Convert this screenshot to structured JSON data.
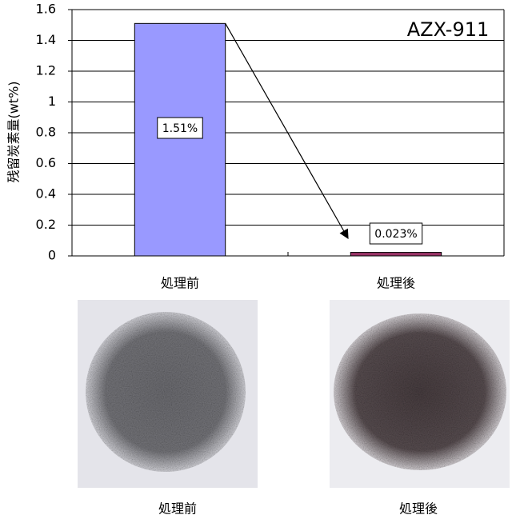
{
  "chart_data": {
    "type": "bar",
    "annotation": "AZX-911",
    "y_label": "残留炭素量(wt%)",
    "categories": [
      "処理前",
      "処理後"
    ],
    "values": [
      1.51,
      0.023
    ],
    "value_labels": [
      "1.51%",
      "0.023%"
    ],
    "colors": [
      "#9999ff",
      "#993366"
    ],
    "ylim": [
      0,
      1.6
    ],
    "yticks": [
      0,
      0.2,
      0.4,
      0.6,
      0.8,
      1,
      1.2,
      1.4,
      1.6
    ],
    "grid": true
  },
  "photos": [
    {
      "caption": "処理前"
    },
    {
      "caption": "処理後"
    }
  ]
}
